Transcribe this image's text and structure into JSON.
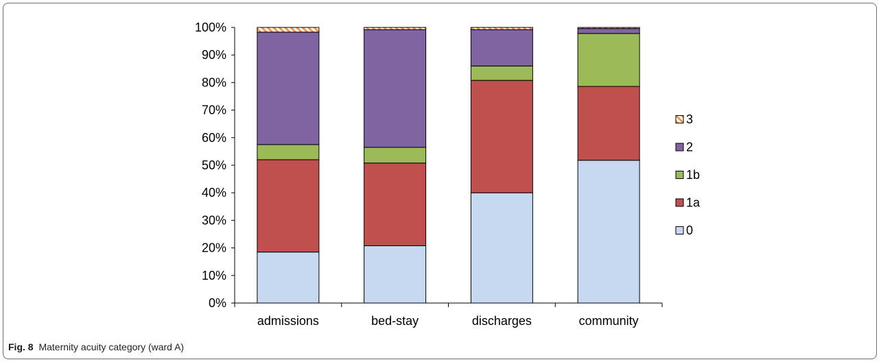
{
  "caption": {
    "label": "Fig. 8",
    "text": "Maternity acuity category (ward A)"
  },
  "chart_data": {
    "type": "bar",
    "stacked": true,
    "categories": [
      "admissions",
      "bed-stay",
      "discharges",
      "community"
    ],
    "ylim": [
      0,
      100
    ],
    "yticks": [
      "0%",
      "10%",
      "20%",
      "30%",
      "40%",
      "50%",
      "60%",
      "70%",
      "80%",
      "90%",
      "100%"
    ],
    "title": "",
    "xlabel": "",
    "ylabel": "",
    "legend_position": "right",
    "series": [
      {
        "name": "0",
        "color": "#c6d9f1",
        "values": [
          18.5,
          20.8,
          40.0,
          51.8
        ]
      },
      {
        "name": "1a",
        "color": "#c0504d",
        "values": [
          33.5,
          30.0,
          40.8,
          26.8
        ]
      },
      {
        "name": "1b",
        "color": "#9bbb59",
        "values": [
          5.5,
          5.7,
          5.2,
          19.2
        ]
      },
      {
        "name": "2",
        "color": "#8064a2",
        "values": [
          40.8,
          42.7,
          13.2,
          1.8
        ]
      },
      {
        "name": "3",
        "color": "#f79646",
        "pattern": "hatched",
        "values": [
          1.7,
          0.8,
          0.8,
          0.4
        ]
      }
    ]
  }
}
